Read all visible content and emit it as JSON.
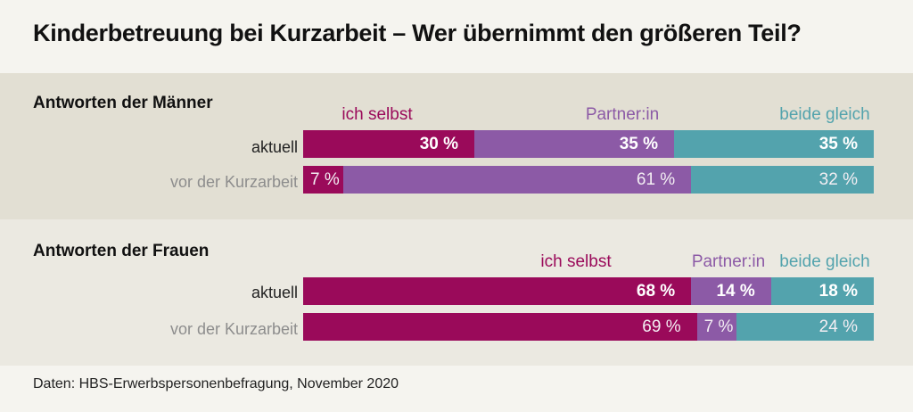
{
  "title": "Kinderbetreuung bei Kurzarbeit – Wer übernimmt den größeren Teil?",
  "source": "Daten: HBS-Erwerbspersonenbefragung, November 2020",
  "colors": {
    "ich_selbst": "#9a0a5a",
    "partner": "#8c5aa6",
    "beide": "#53a3ad"
  },
  "chart_data": [
    {
      "type": "bar",
      "stacked": true,
      "orientation": "horizontal",
      "title": "Antworten der Männer",
      "categories": [
        "aktuell",
        "vor der Kurzarbeit"
      ],
      "series": [
        {
          "name": "ich selbst",
          "values": [
            30,
            7
          ]
        },
        {
          "name": "Partner:in",
          "values": [
            35,
            61
          ]
        },
        {
          "name": "beide gleich",
          "values": [
            35,
            32
          ]
        }
      ],
      "unit": "%"
    },
    {
      "type": "bar",
      "stacked": true,
      "orientation": "horizontal",
      "title": "Antworten der Frauen",
      "categories": [
        "aktuell",
        "vor der Kurzarbeit"
      ],
      "series": [
        {
          "name": "ich selbst",
          "values": [
            68,
            69
          ]
        },
        {
          "name": "Partner:in",
          "values": [
            14,
            7
          ]
        },
        {
          "name": "beide gleich",
          "values": [
            18,
            24
          ]
        }
      ],
      "unit": "%"
    }
  ]
}
